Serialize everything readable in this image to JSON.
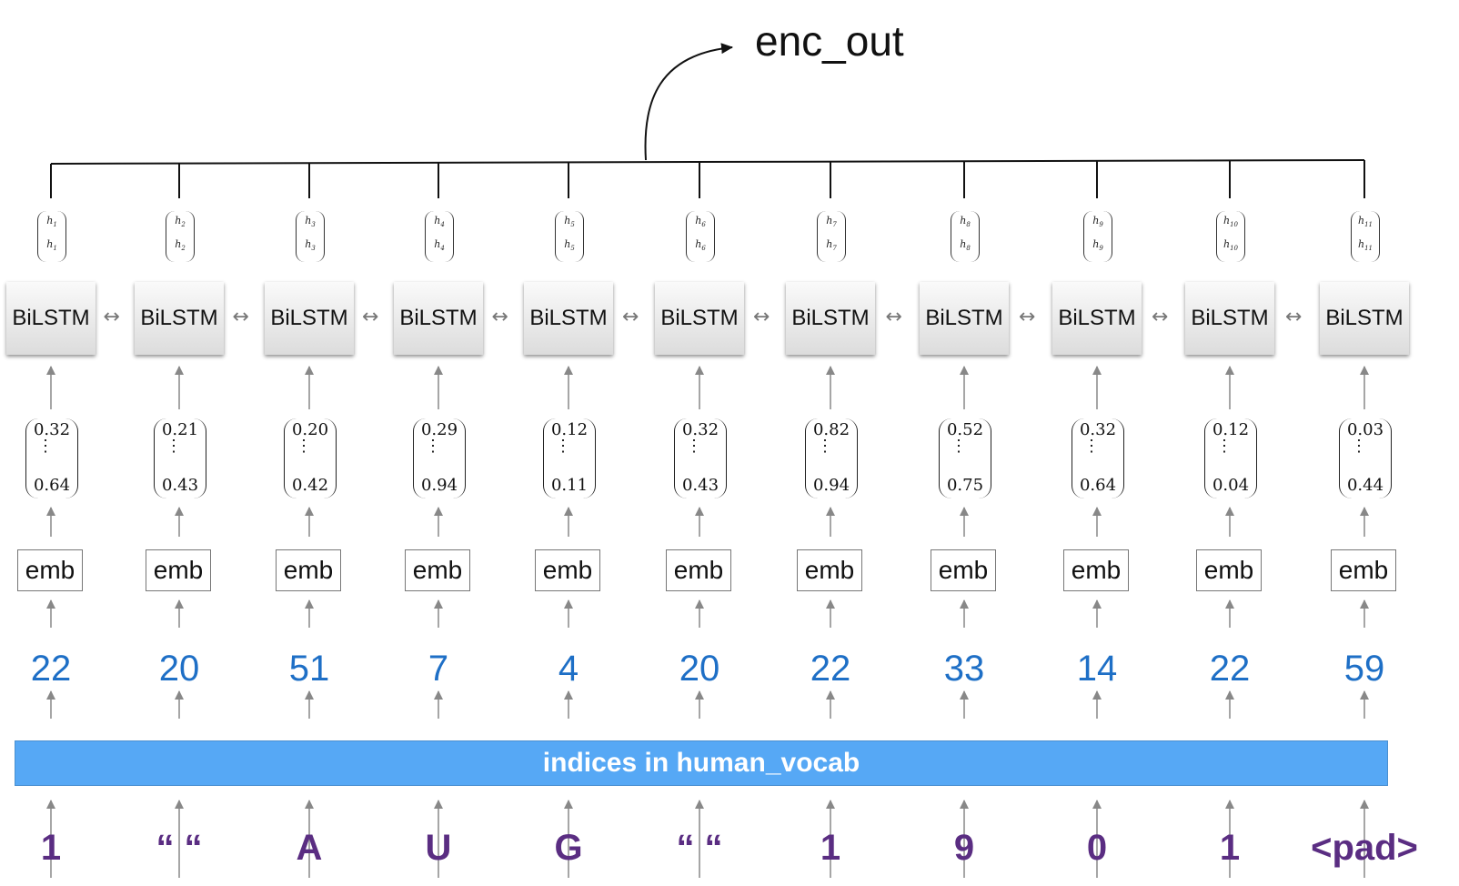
{
  "output_label": "enc_out",
  "lstm_label": "BiLSTM",
  "emb_label": "emb",
  "vocab_label": "indices in human_vocab",
  "steps": [
    {
      "h": "1",
      "v1": "0.32",
      "v2": "0.64",
      "index": "22",
      "char": "1"
    },
    {
      "h": "2",
      "v1": "0.21",
      "v2": "0.43",
      "index": "20",
      "char": "“ “"
    },
    {
      "h": "3",
      "v1": "0.20",
      "v2": "0.42",
      "index": "51",
      "char": "A"
    },
    {
      "h": "4",
      "v1": "0.29",
      "v2": "0.94",
      "index": "7",
      "char": "U"
    },
    {
      "h": "5",
      "v1": "0.12",
      "v2": "0.11",
      "index": "4",
      "char": "G"
    },
    {
      "h": "6",
      "v1": "0.32",
      "v2": "0.43",
      "index": "20",
      "char": "“ “"
    },
    {
      "h": "7",
      "v1": "0.82",
      "v2": "0.94",
      "index": "22",
      "char": "1"
    },
    {
      "h": "8",
      "v1": "0.52",
      "v2": "0.75",
      "index": "33",
      "char": "9"
    },
    {
      "h": "9",
      "v1": "0.32",
      "v2": "0.64",
      "index": "14",
      "char": "0"
    },
    {
      "h": "10",
      "v1": "0.12",
      "v2": "0.04",
      "index": "22",
      "char": "1"
    },
    {
      "h": "11",
      "v1": "0.03",
      "v2": "0.44",
      "index": "59",
      "char": "<pad>"
    }
  ]
}
